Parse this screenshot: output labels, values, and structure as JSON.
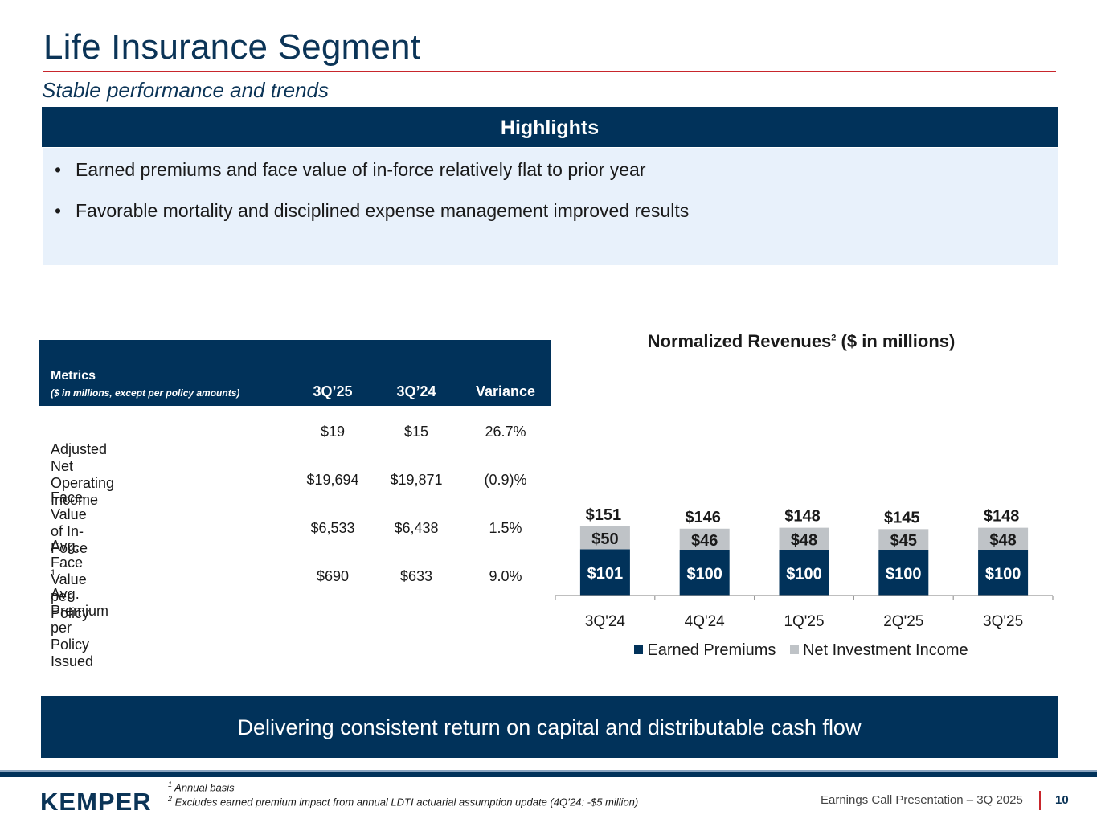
{
  "header": {
    "title": "Life Insurance Segment",
    "subtitle": "Stable performance and trends"
  },
  "highlights": {
    "header": "Highlights",
    "bullet_char": "•",
    "items": [
      "Earned premiums and face value of in-force relatively flat to prior year",
      "Favorable mortality and disciplined expense management improved results"
    ]
  },
  "metrics_table": {
    "header_label": "Metrics",
    "header_sub": "($ in millions, except per policy amounts)",
    "columns": [
      "3Q’25",
      "3Q’24",
      "Variance"
    ],
    "rows": [
      {
        "label": "Adjusted Net Operating Income",
        "sup": "",
        "v1": "$19",
        "v2": "$15",
        "v3": "26.7%"
      },
      {
        "label": "Face Value of In-Force",
        "sup": "",
        "v1": "$19,694",
        "v2": "$19,871",
        "v3": "(0.9)%"
      },
      {
        "label": "Avg. Face Value per Policy",
        "sup": "",
        "v1": "$6,533",
        "v2": "$6,438",
        "v3": "1.5%"
      },
      {
        "label": "Avg. Premium per Policy Issued",
        "sup": "1",
        "v1": "$690",
        "v2": "$633",
        "v3": "9.0%"
      }
    ]
  },
  "chart_data": {
    "type": "bar",
    "stacked": true,
    "title": "Normalized Revenues",
    "title_sup": "2",
    "title_suffix": " ($ in millions)",
    "categories": [
      "3Q'24",
      "4Q'24",
      "1Q'25",
      "2Q'25",
      "3Q'25"
    ],
    "series": [
      {
        "name": "Earned Premiums",
        "color": "#01325a",
        "values": [
          101,
          100,
          100,
          100,
          100
        ]
      },
      {
        "name": "Net Investment Income",
        "color": "#bfc3c7",
        "values": [
          50,
          46,
          48,
          45,
          48
        ]
      }
    ],
    "totals": [
      151,
      146,
      148,
      145,
      148
    ],
    "value_prefix": "$",
    "ylim": [
      0,
      160
    ],
    "legend": "bottom"
  },
  "banner": {
    "text": "Delivering consistent return on capital and distributable cash flow"
  },
  "footer": {
    "logo": "KEMPER",
    "footnote1_num": "1",
    "footnote1": " Annual basis",
    "footnote2_num": "2",
    "footnote2": " Excludes earned premium impact from annual LDTI actuarial assumption update (4Q’24: -$5 million)",
    "presentation": "Earnings Call Presentation – 3Q 2025",
    "page_number": "10"
  }
}
